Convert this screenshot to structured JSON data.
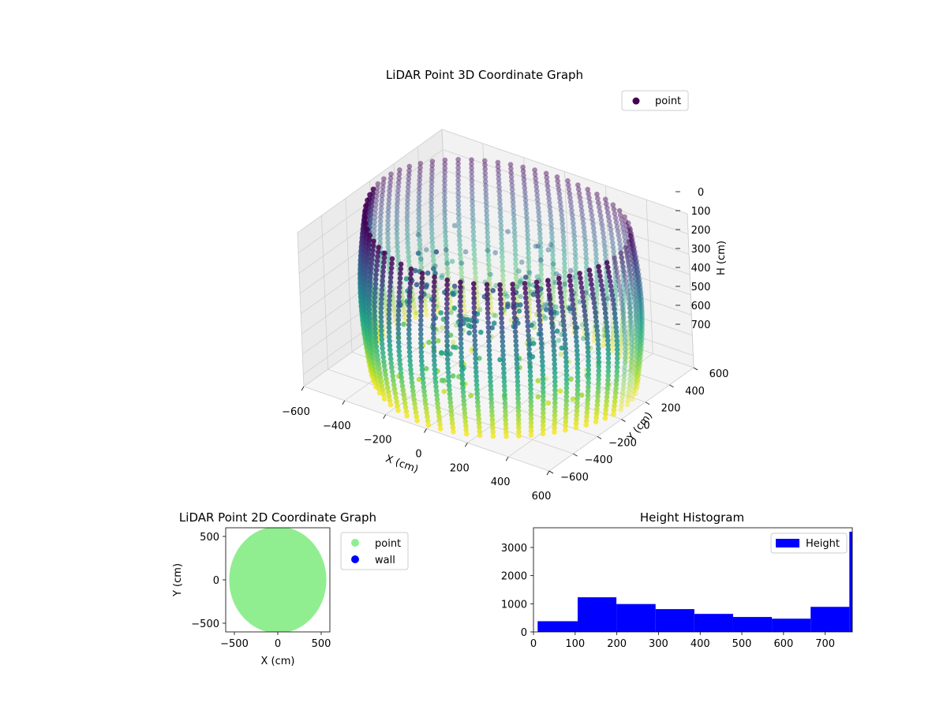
{
  "chart_data": [
    {
      "type": "scatter3d",
      "title": "LiDAR Point 3D Coordinate Graph",
      "xlabel": "X (cm)",
      "ylabel": "Y (cm)",
      "zlabel": "H (cm)",
      "xlim": [
        -600,
        600
      ],
      "ylim": [
        -600,
        600
      ],
      "zlim": [
        0,
        760
      ],
      "z_inverted": true,
      "x_ticks": [
        "−600",
        "−400",
        "−200",
        "0",
        "200",
        "400",
        "600"
      ],
      "y_ticks": [
        "−600",
        "−400",
        "−200",
        "0",
        "200",
        "400",
        "600"
      ],
      "z_ticks": [
        "0",
        "100",
        "200",
        "300",
        "400",
        "500",
        "600",
        "700"
      ],
      "colormap": "viridis",
      "color_by": "height",
      "series": [
        {
          "name": "point",
          "color": "#440154",
          "cylinder_radius": 560,
          "height_range": [
            0,
            760
          ],
          "columns": 64
        }
      ],
      "legend": {
        "position": "top-right",
        "label": "point",
        "color": "#440154"
      },
      "grid": true
    },
    {
      "type": "scatter",
      "title": "LiDAR Point 2D Coordinate Graph",
      "xlabel": "X (cm)",
      "ylabel": "Y (cm)",
      "xlim": [
        -600,
        600
      ],
      "ylim": [
        -600,
        600
      ],
      "x_ticks": [
        "−500",
        "0",
        "500"
      ],
      "y_ticks": [
        "−500",
        "0",
        "500"
      ],
      "series": [
        {
          "name": "point",
          "color": "#90ee90",
          "shape": "filled-disc",
          "radius": 560
        },
        {
          "name": "wall",
          "color": "#0000ff",
          "points": []
        }
      ],
      "legend": {
        "position": "outside-right",
        "labels": [
          "point",
          "wall"
        ]
      }
    },
    {
      "type": "bar",
      "title": "Height Histogram",
      "xlabel": "",
      "ylabel": "",
      "xlim": [
        0,
        765
      ],
      "ylim": [
        0,
        3700
      ],
      "x_ticks": [
        "0",
        "100",
        "200",
        "300",
        "400",
        "500",
        "600",
        "700"
      ],
      "y_ticks": [
        "0",
        "1000",
        "2000",
        "3000"
      ],
      "bins": [
        {
          "start": 10,
          "end": 106,
          "value": 380
        },
        {
          "start": 106,
          "end": 199,
          "value": 1230
        },
        {
          "start": 199,
          "end": 293,
          "value": 990
        },
        {
          "start": 293,
          "end": 386,
          "value": 810
        },
        {
          "start": 386,
          "end": 479,
          "value": 640
        },
        {
          "start": 479,
          "end": 572,
          "value": 530
        },
        {
          "start": 572,
          "end": 665,
          "value": 470
        },
        {
          "start": 665,
          "end": 758,
          "value": 890
        },
        {
          "start": 758,
          "end": 765,
          "value": 3560
        }
      ],
      "series": [
        {
          "name": "Height",
          "color": "#0000ff"
        }
      ],
      "legend": {
        "position": "top-right",
        "label": "Height"
      }
    }
  ]
}
